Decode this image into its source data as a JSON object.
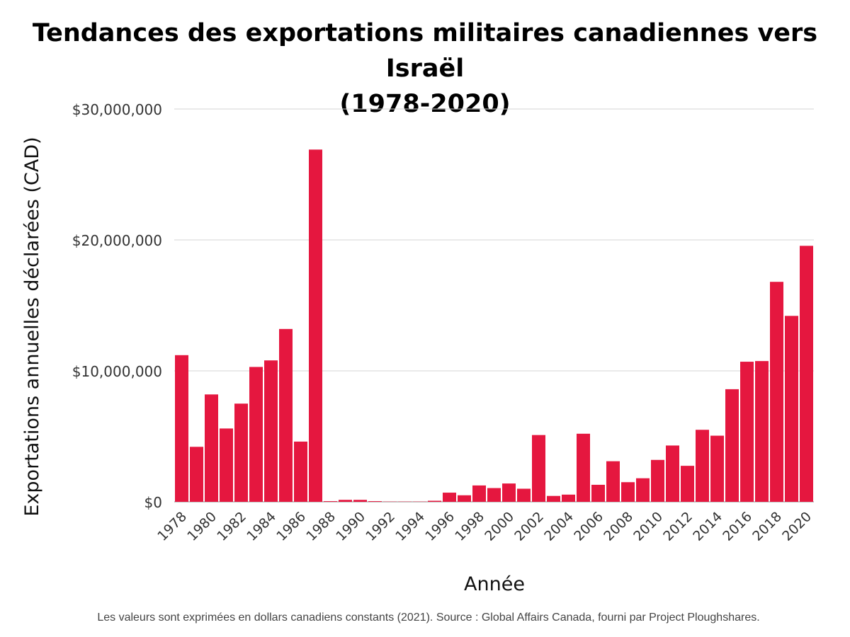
{
  "title_line1": "Tendances des exportations militaires canadiennes vers Israël",
  "title_line2": "(1978-2020)",
  "footnote": "Les valeurs sont exprimées en dollars canadiens constants (2021). Source : Global Affairs Canada, fourni par Project Ploughshares.",
  "chart_data": {
    "type": "bar",
    "xlabel": "Année",
    "ylabel": "Exportations annuelles déclarées (CAD)",
    "ylim": [
      0,
      30000000
    ],
    "y_ticks": [
      0,
      10000000,
      20000000,
      30000000
    ],
    "y_tick_labels": [
      "$0",
      "$10,000,000",
      "$20,000,000",
      "$30,000,000"
    ],
    "grid": true,
    "bar_color": "#e5173f",
    "categories": [
      "1978",
      "1979",
      "1980",
      "1981",
      "1982",
      "1983",
      "1984",
      "1985",
      "1986",
      "1987",
      "1988",
      "1989",
      "1990",
      "1991",
      "1992",
      "1993",
      "1994",
      "1995",
      "1996",
      "1997",
      "1998",
      "1999",
      "2000",
      "2001",
      "2002",
      "2003",
      "2004",
      "2005",
      "2006",
      "2007",
      "2008",
      "2009",
      "2010",
      "2011",
      "2012",
      "2013",
      "2014",
      "2015",
      "2016",
      "2017",
      "2018",
      "2019",
      "2020"
    ],
    "x_tick_labels": [
      "1978",
      "1980",
      "1982",
      "1984",
      "1986",
      "1988",
      "1990",
      "1992",
      "1994",
      "1996",
      "1998",
      "2000",
      "2002",
      "2004",
      "2006",
      "2008",
      "2010",
      "2012",
      "2014",
      "2016",
      "2018",
      "2020"
    ],
    "values": [
      11200000,
      4200000,
      8200000,
      5600000,
      7500000,
      10300000,
      10800000,
      13200000,
      4600000,
      26900000,
      50000,
      150000,
      150000,
      50000,
      20000,
      20000,
      20000,
      80000,
      700000,
      500000,
      1250000,
      1050000,
      1400000,
      1000000,
      5100000,
      450000,
      550000,
      5200000,
      1300000,
      3100000,
      1500000,
      1800000,
      3200000,
      4300000,
      2750000,
      5500000,
      5050000,
      8600000,
      10700000,
      10750000,
      16800000,
      14200000,
      19550000
    ]
  }
}
